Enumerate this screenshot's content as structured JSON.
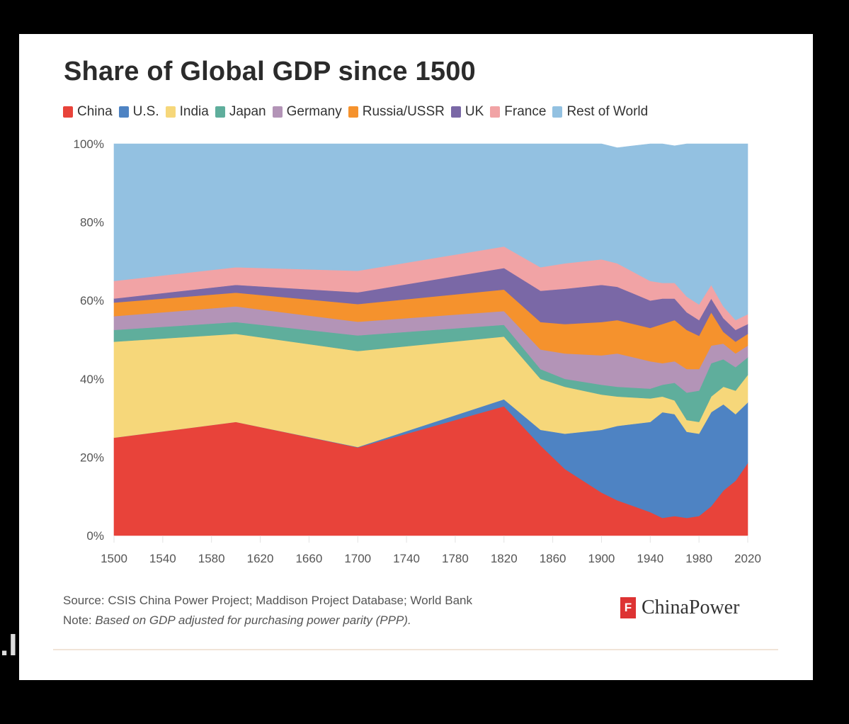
{
  "side_mark": ".I",
  "chart_data": {
    "type": "area",
    "stacked": true,
    "title": "Share of Global GDP since 1500",
    "xlabel": "",
    "ylabel": "",
    "x": [
      1500,
      1600,
      1700,
      1820,
      1850,
      1870,
      1900,
      1913,
      1940,
      1950,
      1960,
      1970,
      1980,
      1990,
      2000,
      2010,
      2020
    ],
    "xlim": [
      1500,
      2020
    ],
    "ylim": [
      0,
      100
    ],
    "x_ticks": [
      "1500",
      "1540",
      "1580",
      "1620",
      "1660",
      "1700",
      "1740",
      "1780",
      "1820",
      "1860",
      "1900",
      "1940",
      "1980",
      "2020"
    ],
    "y_ticks": [
      "0%",
      "20%",
      "40%",
      "60%",
      "80%",
      "100%"
    ],
    "series": [
      {
        "name": "China",
        "color": "#e8433a",
        "values": [
          25,
          29,
          22.5,
          33,
          23,
          17,
          11,
          9,
          6,
          4.5,
          5,
          4.5,
          5,
          7.5,
          11.5,
          14,
          18.5
        ]
      },
      {
        "name": "U.S.",
        "color": "#4e83c3",
        "values": [
          0,
          0,
          0.1,
          1.8,
          4,
          9,
          16,
          19,
          23,
          27,
          26,
          22,
          21,
          24,
          22,
          17,
          15.5
        ]
      },
      {
        "name": "India",
        "color": "#f6d77a",
        "values": [
          24.5,
          22.5,
          24.5,
          16,
          13,
          12,
          9,
          7.5,
          6,
          4,
          3.5,
          3,
          3,
          4,
          4.5,
          6,
          7
        ]
      },
      {
        "name": "Japan",
        "color": "#5fae9c",
        "values": [
          3,
          3,
          4,
          3,
          2.5,
          2,
          2.5,
          2.5,
          2.5,
          3,
          4.5,
          7,
          8,
          8.5,
          7,
          6,
          4.5
        ]
      },
      {
        "name": "Germany",
        "color": "#b394b7",
        "values": [
          3.5,
          4,
          3.5,
          3.5,
          5,
          6.5,
          7.5,
          8.5,
          7,
          5.5,
          5.5,
          6,
          5.5,
          4.5,
          4,
          3.5,
          3
        ]
      },
      {
        "name": "Russia/USSR",
        "color": "#f5922d",
        "values": [
          3.5,
          3.5,
          4.5,
          5.5,
          7,
          7.5,
          8.5,
          8.5,
          8.5,
          10,
          10.5,
          10,
          8.5,
          8.5,
          3,
          3,
          3
        ]
      },
      {
        "name": "UK",
        "color": "#7a68a6",
        "values": [
          1,
          2,
          3,
          5.5,
          8,
          9,
          9.5,
          8.5,
          7,
          6.5,
          5.5,
          4.5,
          4,
          3.5,
          3.5,
          3,
          2.5
        ]
      },
      {
        "name": "France",
        "color": "#f1a3a5",
        "values": [
          4.5,
          4.5,
          5.5,
          5.5,
          6,
          6.5,
          6.5,
          6,
          5,
          4,
          4,
          4,
          4,
          3.5,
          3,
          2.5,
          2.5
        ]
      },
      {
        "name": "Rest of World",
        "color": "#93c1e1",
        "values": [
          35,
          31.5,
          32.4,
          26.2,
          31.5,
          30.5,
          29.5,
          29.5,
          35,
          35.5,
          35,
          39,
          41,
          36,
          41.5,
          45,
          43.5
        ]
      }
    ],
    "source_label": "Source:",
    "source_text": "CSIS China Power Project; Maddison Project Database; World Bank",
    "note_label": "Note:",
    "note_text": "Based on GDP adjusted for purchasing power parity (PPP).",
    "logo_mark": "F",
    "logo_text": "ChinaPower"
  }
}
